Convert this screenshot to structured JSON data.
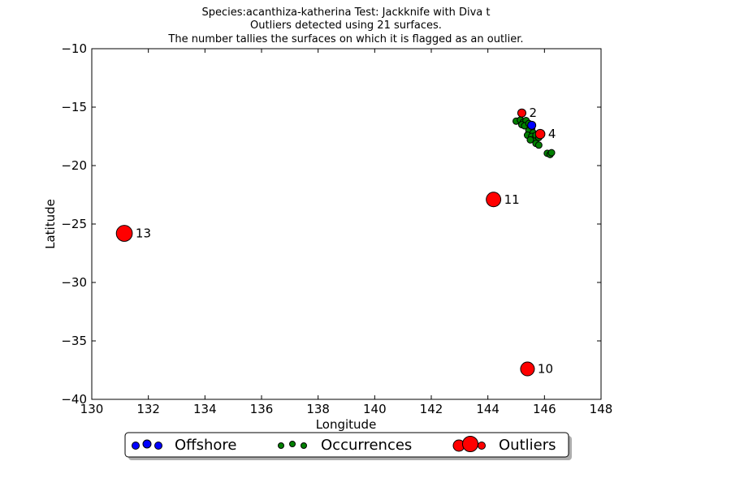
{
  "chart_data": {
    "type": "scatter",
    "title_lines": [
      "Species:acanthiza-katherina    Test: Jackknife with Diva t",
      "Outliers detected using 21 surfaces.",
      "The number tallies the surfaces on which it is flagged as an outlier."
    ],
    "xlabel": "Longitude",
    "ylabel": "Latitude",
    "xlim": [
      130,
      148
    ],
    "ylim": [
      -40,
      -10
    ],
    "x_ticks": [
      130,
      132,
      134,
      136,
      138,
      140,
      142,
      144,
      146,
      148
    ],
    "y_ticks": [
      -40,
      -35,
      -30,
      -25,
      -20,
      -15,
      -10
    ],
    "x_tick_labels": [
      "130",
      "132",
      "134",
      "136",
      "138",
      "140",
      "142",
      "144",
      "146",
      "148"
    ],
    "y_tick_labels": [
      "−40",
      "−35",
      "−30",
      "−25",
      "−20",
      "−15",
      "−10"
    ],
    "grid": false,
    "legend_placement": "bottom-center-outside",
    "series": [
      {
        "name": "Offshore",
        "color": "#0000ff",
        "points": [
          {
            "x": 145.55,
            "y": -16.55
          }
        ]
      },
      {
        "name": "Occurrences",
        "color": "#008000",
        "points": [
          {
            "x": 145.0,
            "y": -16.2
          },
          {
            "x": 145.15,
            "y": -16.1
          },
          {
            "x": 145.25,
            "y": -16.3
          },
          {
            "x": 145.35,
            "y": -16.15
          },
          {
            "x": 145.2,
            "y": -16.5
          },
          {
            "x": 145.3,
            "y": -16.6
          },
          {
            "x": 145.45,
            "y": -16.4
          },
          {
            "x": 145.55,
            "y": -16.8
          },
          {
            "x": 145.45,
            "y": -17.0
          },
          {
            "x": 145.6,
            "y": -17.2
          },
          {
            "x": 145.4,
            "y": -17.4
          },
          {
            "x": 145.55,
            "y": -17.5
          },
          {
            "x": 145.65,
            "y": -17.7
          },
          {
            "x": 145.5,
            "y": -17.8
          },
          {
            "x": 145.7,
            "y": -17.4
          },
          {
            "x": 145.8,
            "y": -17.6
          },
          {
            "x": 145.7,
            "y": -18.1
          },
          {
            "x": 145.8,
            "y": -18.25
          },
          {
            "x": 146.1,
            "y": -18.95
          },
          {
            "x": 146.2,
            "y": -19.05
          },
          {
            "x": 146.25,
            "y": -18.9
          }
        ]
      },
      {
        "name": "Outliers",
        "color": "#ff0000",
        "points": [
          {
            "x": 145.2,
            "y": -15.5,
            "count": 2,
            "label": "2"
          },
          {
            "x": 145.85,
            "y": -17.3,
            "count": 4,
            "label": "4"
          },
          {
            "x": 144.2,
            "y": -22.9,
            "count": 11,
            "label": "11"
          },
          {
            "x": 131.15,
            "y": -25.8,
            "count": 13,
            "label": "13"
          },
          {
            "x": 145.4,
            "y": -37.4,
            "count": 10,
            "label": "10"
          }
        ]
      }
    ]
  }
}
